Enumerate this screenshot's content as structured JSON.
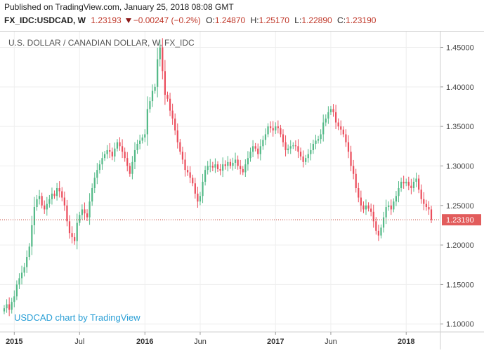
{
  "header": {
    "published": "Published on TradingView.com, January 25, 2018 08:08 GMT",
    "symbol": "FX_IDC:USDCAD, W",
    "last": "1.23193",
    "change": "−0.00247 (−0.2%)",
    "o_label": "O:",
    "o_value": "1.24870",
    "h_label": "H:",
    "h_value": "1.25170",
    "l_label": "L:",
    "l_value": "1.22890",
    "c_label": "C:",
    "c_value": "1.23190"
  },
  "chart_data": {
    "type": "candlestick",
    "title": "U.S. DOLLAR / CANADIAN DOLLAR, W, FX_IDC",
    "watermark": "USDCAD chart by TradingView",
    "ylim": [
      1.09,
      1.47
    ],
    "yticks": [
      "1.10000",
      "1.15000",
      "1.20000",
      "1.25000",
      "1.30000",
      "1.35000",
      "1.40000",
      "1.45000"
    ],
    "xticks": [
      "2015",
      "Jul",
      "2016",
      "Jun",
      "2017",
      "Jun",
      "2018"
    ],
    "grid": true,
    "current_price": 1.2319,
    "current_price_label": "1.23190",
    "colors": {
      "up": "#53b987",
      "down": "#eb4d5c",
      "price_line": "#c0392b",
      "watermark": "#2a9fd6"
    },
    "close_series": [
      1.12,
      1.125,
      1.118,
      1.128,
      1.135,
      1.15,
      1.158,
      1.165,
      1.172,
      1.185,
      1.198,
      1.225,
      1.248,
      1.258,
      1.262,
      1.25,
      1.245,
      1.252,
      1.258,
      1.265,
      1.262,
      1.272,
      1.268,
      1.26,
      1.25,
      1.23,
      1.215,
      1.21,
      1.205,
      1.228,
      1.238,
      1.245,
      1.24,
      1.235,
      1.255,
      1.272,
      1.285,
      1.295,
      1.302,
      1.31,
      1.315,
      1.32,
      1.318,
      1.312,
      1.322,
      1.33,
      1.325,
      1.318,
      1.31,
      1.3,
      1.29,
      1.305,
      1.32,
      1.328,
      1.332,
      1.336,
      1.34,
      1.372,
      1.382,
      1.395,
      1.4,
      1.435,
      1.45,
      1.42,
      1.39,
      1.385,
      1.37,
      1.36,
      1.345,
      1.33,
      1.318,
      1.308,
      1.295,
      1.292,
      1.285,
      1.278,
      1.265,
      1.255,
      1.262,
      1.28,
      1.295,
      1.3,
      1.3,
      1.298,
      1.302,
      1.296,
      1.294,
      1.302,
      1.3,
      1.305,
      1.3,
      1.304,
      1.308,
      1.3,
      1.296,
      1.292,
      1.302,
      1.31,
      1.318,
      1.325,
      1.322,
      1.315,
      1.325,
      1.333,
      1.34,
      1.35,
      1.348,
      1.345,
      1.35,
      1.348,
      1.34,
      1.33,
      1.32,
      1.322,
      1.325,
      1.326,
      1.325,
      1.318,
      1.312,
      1.305,
      1.31,
      1.315,
      1.32,
      1.328,
      1.332,
      1.334,
      1.34,
      1.355,
      1.36,
      1.368,
      1.372,
      1.368,
      1.355,
      1.35,
      1.346,
      1.34,
      1.33,
      1.318,
      1.3,
      1.29,
      1.272,
      1.26,
      1.25,
      1.245,
      1.25,
      1.246,
      1.242,
      1.23,
      1.218,
      1.212,
      1.222,
      1.235,
      1.248,
      1.25,
      1.245,
      1.255,
      1.262,
      1.272,
      1.28,
      1.278,
      1.28,
      1.275,
      1.272,
      1.28,
      1.284,
      1.27,
      1.258,
      1.252,
      1.248,
      1.245,
      1.2319
    ]
  }
}
